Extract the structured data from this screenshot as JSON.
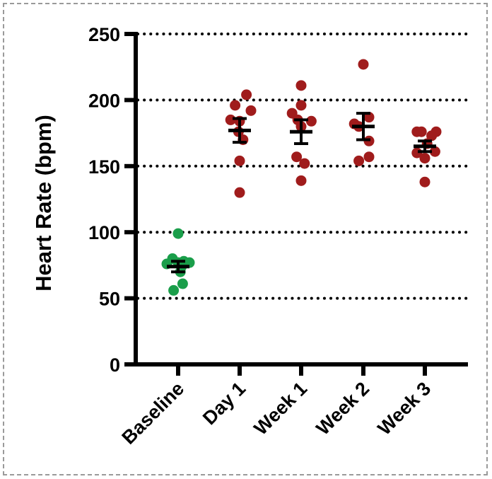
{
  "chart_data": {
    "type": "scatter",
    "title": "",
    "xlabel": "",
    "ylabel": "Heart Rate (bpm)",
    "ylim": [
      0,
      250
    ],
    "yticks": [
      0,
      50,
      100,
      150,
      200,
      250
    ],
    "grid": "horizontal-dotted",
    "categories": [
      "Baseline",
      "Day 1",
      "Week 1",
      "Week 2",
      "Week 3"
    ],
    "colors": {
      "baseline": "#1a9e4a",
      "post": "#a01c1c",
      "axis": "#000000"
    },
    "series": [
      {
        "category": "Baseline",
        "color": "#1a9e4a",
        "mean": 74,
        "sem": 4,
        "points": [
          99,
          80,
          78,
          77,
          76,
          77,
          74,
          70,
          61,
          56
        ],
        "offsets": [
          0,
          -0.5,
          0.5,
          1,
          -1,
          0,
          0.3,
          0.2,
          0.4,
          -0.4
        ]
      },
      {
        "category": "Day 1",
        "color": "#a01c1c",
        "mean": 177,
        "sem": 9,
        "points": [
          204,
          196,
          192,
          185,
          184,
          176,
          170,
          154,
          130
        ],
        "offsets": [
          0.6,
          -0.4,
          1,
          -0.8,
          0,
          -0.1,
          0.3,
          0,
          0
        ]
      },
      {
        "category": "Week 1",
        "color": "#a01c1c",
        "mean": 176,
        "sem": 9,
        "points": [
          211,
          196,
          190,
          185,
          180,
          184,
          157,
          152,
          139
        ],
        "offsets": [
          0,
          0,
          -0.8,
          -0.3,
          0,
          0.9,
          -0.4,
          0.3,
          0
        ]
      },
      {
        "category": "Week 2",
        "color": "#a01c1c",
        "mean": 180,
        "sem": 10,
        "points": [
          227,
          187,
          182,
          180,
          169,
          157,
          154
        ],
        "offsets": [
          0,
          0.5,
          -0.8,
          -0.4,
          0.5,
          0.5,
          -0.4
        ]
      },
      {
        "category": "Week 3",
        "color": "#a01c1c",
        "mean": 165,
        "sem": 4,
        "points": [
          176,
          176,
          176,
          173,
          167,
          161,
          160,
          156,
          138
        ],
        "offsets": [
          -0.7,
          -0.3,
          1,
          0.6,
          0.2,
          0.9,
          -0.7,
          0,
          0
        ]
      }
    ]
  }
}
